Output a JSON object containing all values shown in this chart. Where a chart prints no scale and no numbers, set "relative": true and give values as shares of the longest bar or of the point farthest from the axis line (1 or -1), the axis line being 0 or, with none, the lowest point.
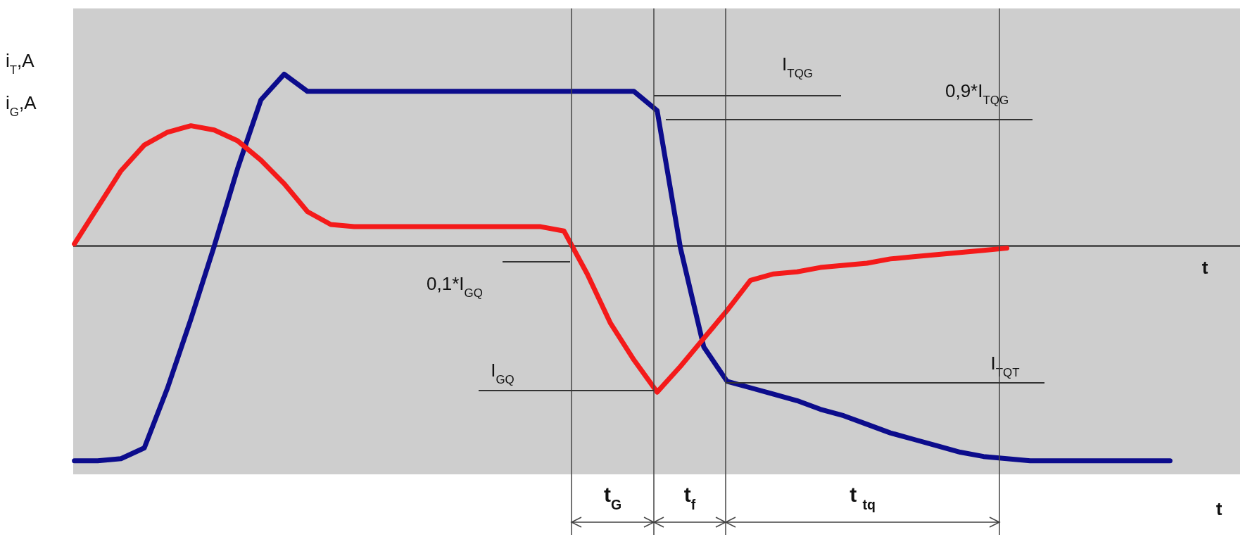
{
  "chart_data": {
    "type": "line",
    "relative": true,
    "ylabel": "i$_{T}$,A",
    "xlabel": "t",
    "tick_labels": false,
    "line_style": "solid",
    "categories": [
      null,
      null,
      null,
      null,
      null,
      null,
      null,
      null,
      null,
      null,
      null,
      null,
      null,
      null,
      null,
      null,
      null,
      null,
      null,
      null,
      null,
      null,
      null,
      null,
      null,
      null,
      null,
      null,
      null,
      null,
      null,
      null,
      null,
      null,
      null,
      null,
      null,
      null,
      null,
      null,
      null,
      null,
      null,
      null,
      null,
      null,
      null,
      null
    ],
    "series": [
      {
        "color": "#0c0c8c",
        "values": [
          -1,
          -1,
          -0.99,
          -0.94,
          -0.66,
          -0.34,
          0.0,
          0.36,
          0.68,
          0.8,
          0.72,
          0.72,
          0.72,
          0.72,
          0.72,
          0.72,
          0.72,
          0.72,
          0.72,
          0.72,
          0.72,
          0.72,
          0.72,
          0.72,
          0.72,
          0.63,
          -0.01,
          -0.47,
          -0.63,
          -0.66,
          -0.69,
          -0.72,
          -0.76,
          -0.79,
          -0.83,
          -0.87,
          -0.9,
          -0.93,
          -0.96,
          -0.98,
          -0.99,
          -1,
          -1,
          -1,
          -1,
          -1,
          -1,
          -1
        ]
      },
      {
        "color": "#f41a1a",
        "values": [
          0.01,
          0.18,
          0.35,
          0.47,
          0.53,
          0.56,
          0.54,
          0.49,
          0.4,
          0.29,
          0.16,
          0.1,
          0.09,
          0.09,
          0.09,
          0.09,
          0.09,
          0.09,
          0.09,
          0.09,
          0.09,
          0.07,
          -0.13,
          -0.36,
          -0.53,
          -0.68,
          -0.56,
          -0.43,
          -0.3,
          -0.16,
          -0.13,
          -0.12,
          -0.1,
          -0.09,
          -0.08,
          -0.06,
          -0.05,
          -0.04,
          -0.03,
          -0.02,
          -0.01,
          null,
          null,
          null,
          null,
          null,
          null,
          null
        ]
      }
    ],
    "annotations": [
      "i$_{G}$,A",
      "t",
      "t$_{G}$",
      "t$_{f}$",
      "t $_{tq}$",
      "I$_{TQG}$",
      "0,9*I$_{TQG}$",
      "0,1*I$_{GQ}$",
      "I$_{GQ}$",
      "I$_{TQT}$"
    ]
  }
}
